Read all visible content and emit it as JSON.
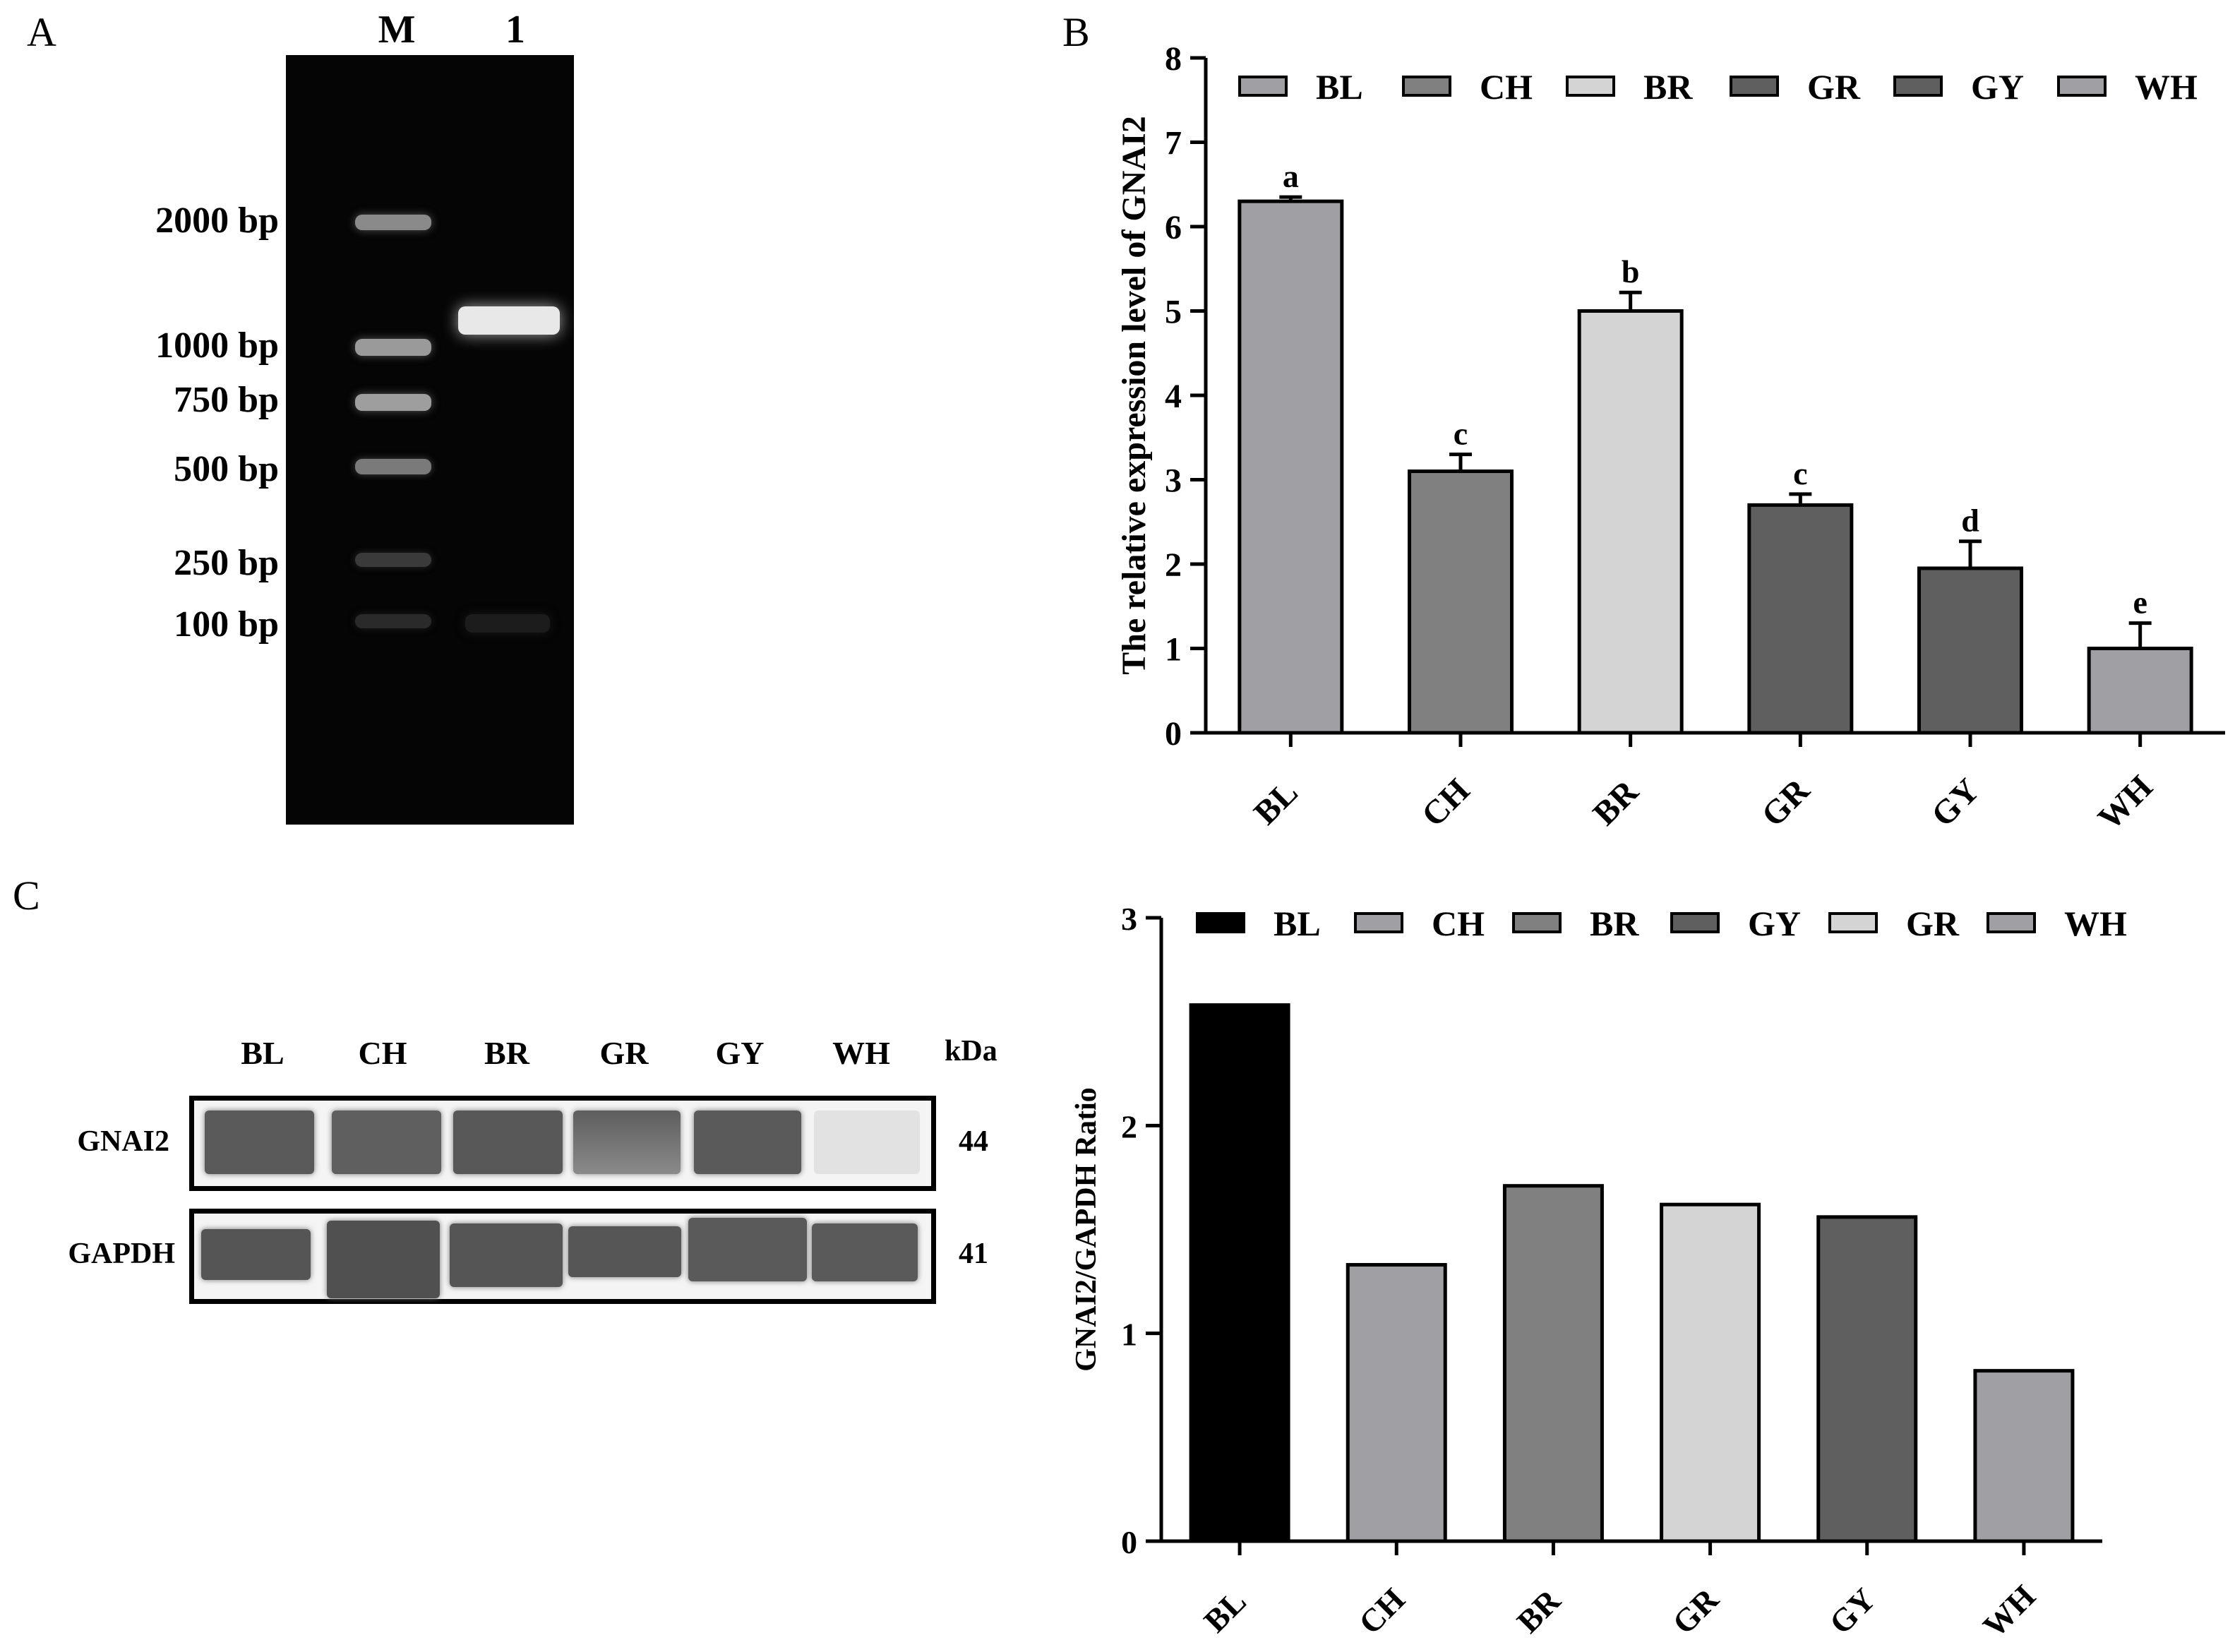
{
  "panel_labels": {
    "a": "A",
    "b": "B",
    "c": "C"
  },
  "gel": {
    "column_labels": [
      "M",
      "1"
    ],
    "ladder": [
      "2000 bp",
      "1000 bp",
      "750 bp",
      "500 bp",
      "250 bp",
      "100 bp"
    ]
  },
  "blot": {
    "lanes": [
      "BL",
      "CH",
      "BR",
      "GR",
      "GY",
      "WH"
    ],
    "unit_label": "kDa",
    "rows": [
      {
        "protein": "GNAI2",
        "kda": "44"
      },
      {
        "protein": "GAPDH",
        "kda": "41"
      }
    ]
  },
  "chart_data": [
    {
      "type": "bar",
      "categories": [
        "BL",
        "CH",
        "BR",
        "GR",
        "GY",
        "WH"
      ],
      "values": [
        6.3,
        3.1,
        5.0,
        2.7,
        1.95,
        1.0
      ],
      "errors": [
        0.05,
        0.2,
        0.22,
        0.13,
        0.32,
        0.3
      ],
      "significance": [
        "a",
        "c",
        "b",
        "c",
        "d",
        "e"
      ],
      "colors": [
        "#a0a0a4",
        "#808080",
        "#d4d4d4",
        "#5f5f5f",
        "#5f5f5f",
        "#a0a0a4"
      ],
      "legend": [
        "BL",
        "CH",
        "BR",
        "GR",
        "GY",
        "WH"
      ],
      "legend_position": "top",
      "ylabel": "The relative expression level of GNAI2",
      "xlabel": "",
      "ylim": [
        0,
        8
      ],
      "yticks": [
        0,
        1,
        2,
        3,
        4,
        5,
        6,
        7,
        8
      ],
      "grid": false
    },
    {
      "type": "bar",
      "categories": [
        "BL",
        "CH",
        "BR",
        "GR",
        "GY",
        "WH"
      ],
      "values": [
        2.58,
        1.33,
        1.71,
        1.62,
        1.56,
        0.82
      ],
      "colors": [
        "#000000",
        "#a0a0a4",
        "#808080",
        "#d4d4d4",
        "#5f5f5f",
        "#a0a0a4"
      ],
      "legend": [
        "BL",
        "CH",
        "BR",
        "GY",
        "GR",
        "WH"
      ],
      "legend_colors": [
        "#000000",
        "#a0a0a4",
        "#808080",
        "#5f5f5f",
        "#d4d4d4",
        "#a0a0a4"
      ],
      "legend_position": "top",
      "ylabel": "GNAI2/GAPDH Ratio",
      "xlabel": "",
      "ylim": [
        0,
        3
      ],
      "yticks": [
        0,
        1,
        2,
        3
      ],
      "grid": false
    }
  ]
}
